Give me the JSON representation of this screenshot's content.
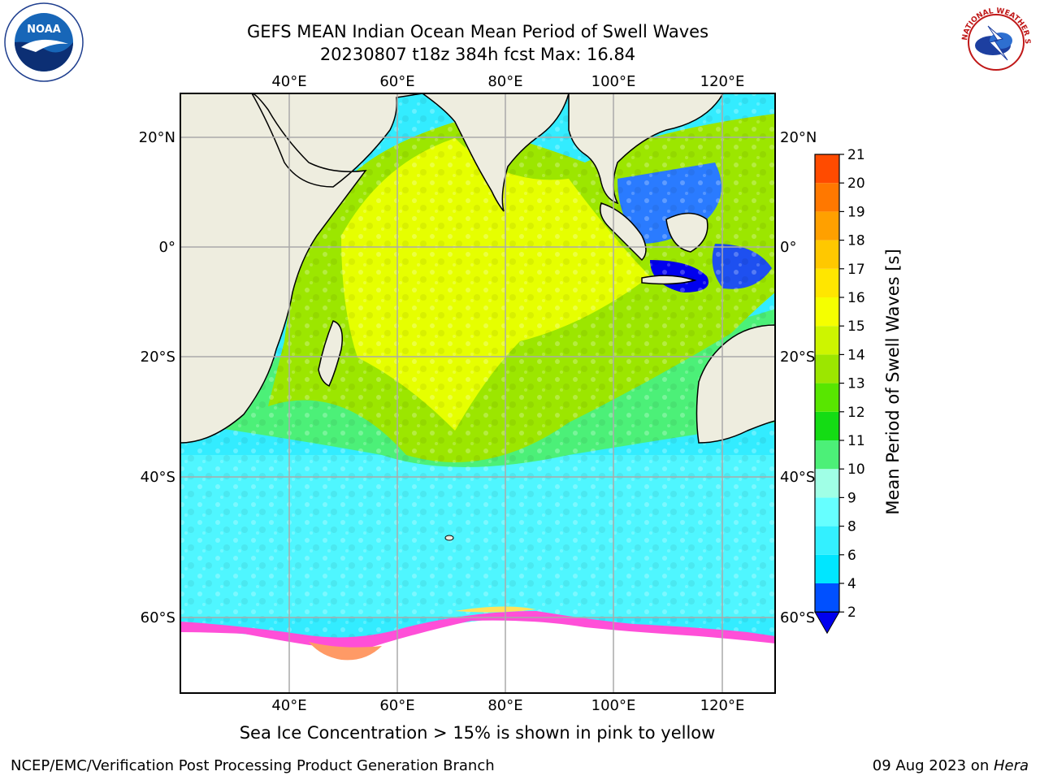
{
  "title_line1": "GEFS MEAN Indian Ocean Mean Period of Swell Waves",
  "title_line2": "20230807 t18z 384h fcst   Max: 16.84",
  "logos": {
    "left": "NOAA",
    "left_ring_text": "NATIONAL OCEANIC AND ATMOSPHERIC ADMINISTRATION · U.S. DEPARTMENT OF COMMERCE",
    "right_ring_text": "NATIONAL WEATHER SERVICE"
  },
  "map": {
    "lon_ticks": [
      "40°E",
      "60°E",
      "80°E",
      "100°E",
      "120°E"
    ],
    "lat_ticks_left": [
      "20°N",
      "0°",
      "20°S",
      "40°S",
      "60°S"
    ],
    "lat_ticks_right": [
      "20°N",
      "0°",
      "20°S",
      "40°S",
      "60°S"
    ]
  },
  "colorbar": {
    "label": "Mean Period of Swell Waves [s]",
    "ticks": [
      "2",
      "4",
      "6",
      "8",
      "9",
      "10",
      "11",
      "12",
      "13",
      "14",
      "15",
      "16",
      "17",
      "18",
      "19",
      "20",
      "21"
    ],
    "colors": [
      "#0050ff",
      "#00e6ff",
      "#33f0ff",
      "#66ffff",
      "#a0ffe6",
      "#4cf078",
      "#14dc14",
      "#58e600",
      "#9ce600",
      "#cdf500",
      "#f5ff00",
      "#ffe600",
      "#ffc800",
      "#ffa000",
      "#ff7800",
      "#ff4b00",
      "#ff1e00"
    ],
    "under_color": "#0000ee"
  },
  "footnote": "Sea Ice Concentration > 15% is shown in pink to yellow",
  "footer_left": "NCEP/EMC/Verification Post Processing Product Generation Branch",
  "footer_right_date": "09 Aug 2023 on ",
  "footer_right_machine": "Hera"
}
